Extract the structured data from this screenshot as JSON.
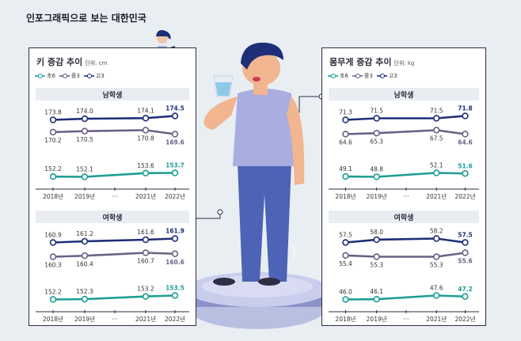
{
  "header": {
    "title": "인포그래픽으로 보는 대한민국"
  },
  "colors": {
    "elementary6": "#1e9e95",
    "middle3": "#6c5f86",
    "high3": "#1f2e78",
    "frame": "#2d2d44"
  },
  "legend": [
    {
      "key": "elementary6",
      "label": "초6"
    },
    {
      "key": "middle3",
      "label": "중3"
    },
    {
      "key": "high3",
      "label": "고3"
    }
  ],
  "illustration": {
    "credit": "ⓒ박미지",
    "icons": [
      "doctor-with-clipboard",
      "boy-drinking-water",
      "podium-stand"
    ]
  },
  "chart_data": [
    {
      "id": "height",
      "type": "line",
      "title": "키 증감 추이",
      "unit": "단위: cm",
      "x": [
        "2018년",
        "2019년",
        "···",
        "2021년",
        "2022년"
      ],
      "groups": [
        {
          "title": "남학생",
          "series": [
            {
              "name": "고3",
              "key": "high3",
              "values": [
                173.8,
                174.0,
                null,
                174.1,
                174.5
              ]
            },
            {
              "name": "중3",
              "key": "middle3",
              "values": [
                170.2,
                170.5,
                null,
                170.8,
                169.6
              ]
            },
            {
              "name": "초6",
              "key": "elementary6",
              "values": [
                152.2,
                152.1,
                null,
                153.6,
                153.7
              ]
            }
          ]
        },
        {
          "title": "여학생",
          "series": [
            {
              "name": "고3",
              "key": "high3",
              "values": [
                160.9,
                161.2,
                null,
                161.6,
                161.9
              ]
            },
            {
              "name": "중3",
              "key": "middle3",
              "values": [
                160.3,
                160.4,
                null,
                160.7,
                160.6
              ]
            },
            {
              "name": "초6",
              "key": "elementary6",
              "values": [
                152.2,
                152.3,
                null,
                153.2,
                153.5
              ]
            }
          ]
        }
      ]
    },
    {
      "id": "weight",
      "type": "line",
      "title": "몸무게 증감 추이",
      "unit": "단위: kg",
      "x": [
        "2018년",
        "2019년",
        "···",
        "2021년",
        "2022년"
      ],
      "groups": [
        {
          "title": "남학생",
          "series": [
            {
              "name": "고3",
              "key": "high3",
              "values": [
                71.3,
                71.5,
                null,
                71.5,
                71.8
              ]
            },
            {
              "name": "중3",
              "key": "middle3",
              "values": [
                64.6,
                65.3,
                null,
                67.5,
                64.6
              ]
            },
            {
              "name": "초6",
              "key": "elementary6",
              "values": [
                49.1,
                48.8,
                null,
                52.1,
                51.6
              ]
            }
          ]
        },
        {
          "title": "여학생",
          "series": [
            {
              "name": "고3",
              "key": "high3",
              "values": [
                57.5,
                58.0,
                null,
                58.2,
                57.5
              ]
            },
            {
              "name": "중3",
              "key": "middle3",
              "values": [
                55.4,
                55.3,
                null,
                55.3,
                55.6
              ]
            },
            {
              "name": "초6",
              "key": "elementary6",
              "values": [
                46.0,
                46.1,
                null,
                47.6,
                47.2
              ]
            }
          ]
        }
      ]
    }
  ]
}
